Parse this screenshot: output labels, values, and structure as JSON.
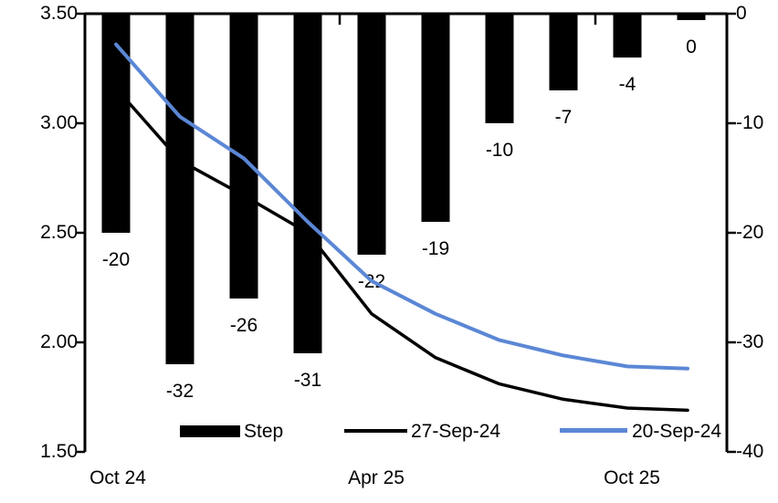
{
  "chart_data": {
    "type": "combo-bar-line",
    "title": "",
    "background": "#FFFFFF",
    "n_categories": 10,
    "x_axis_labels": [
      {
        "label": "Oct 24",
        "category_index": 0
      },
      {
        "label": "Apr 25",
        "category_index": 4
      },
      {
        "label": "Oct 25",
        "category_index": 8
      }
    ],
    "left_axis": {
      "tick_labels": [
        "3.50",
        "3.00",
        "2.50",
        "2.00",
        "1.50"
      ],
      "min": 1.5,
      "max": 3.5
    },
    "right_axis": {
      "tick_labels": [
        "0",
        "-10",
        "-20",
        "-30",
        "-40"
      ],
      "min": -40,
      "max": 0
    },
    "bar_series": {
      "name": "Step",
      "axis": "right",
      "color": "#000000",
      "values": [
        -20,
        -32,
        -26,
        -31,
        -22,
        -19,
        -10,
        -7,
        -4,
        0
      ],
      "data_labels": [
        "-20",
        "-32",
        "-26",
        "-31",
        "-22",
        "-19",
        "-10",
        "-7",
        "-4",
        "0"
      ]
    },
    "line_series": [
      {
        "name": "27-Sep-24",
        "axis": "left",
        "color": "#000000",
        "values": [
          3.16,
          2.83,
          2.67,
          2.5,
          2.13,
          1.93,
          1.81,
          1.74,
          1.7,
          1.69
        ]
      },
      {
        "name": "20-Sep-24",
        "axis": "left",
        "color": "#5B87D5",
        "values": [
          3.36,
          3.03,
          2.84,
          2.55,
          2.28,
          2.13,
          2.01,
          1.94,
          1.89,
          1.88
        ]
      }
    ],
    "legend": {
      "position": "bottom-inside",
      "items": [
        {
          "label": "Step",
          "swatch": "bar",
          "color": "#000000"
        },
        {
          "label": "27-Sep-24",
          "swatch": "line",
          "color": "#000000"
        },
        {
          "label": "20-Sep-24",
          "swatch": "line",
          "color": "#5B87D5"
        }
      ]
    }
  }
}
